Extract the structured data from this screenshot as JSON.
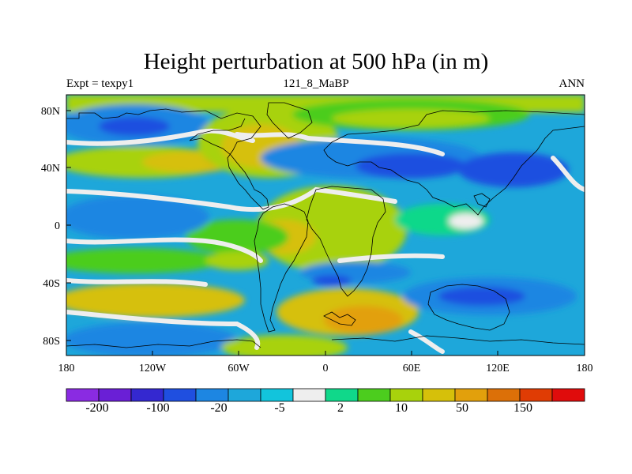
{
  "title": "Height perturbation at 500 hPa (in m)",
  "subtitle_left": "Expt = texpy1",
  "subtitle_center": "121_8_MaBP",
  "subtitle_right": "ANN",
  "map": {
    "projection": "cylindrical-equidistant",
    "lon_range": [
      -180,
      180
    ],
    "lat_range": [
      -90,
      90
    ],
    "x_tick_labels": [
      "180",
      "120W",
      "60W",
      "0",
      "60E",
      "120E",
      "180"
    ],
    "y_tick_labels": [
      "80N",
      "40N",
      "0",
      "40S",
      "80S"
    ]
  },
  "colorbar": {
    "colors": [
      "#8a2be2",
      "#6a1fd6",
      "#3428d0",
      "#1f4fe0",
      "#1d86e2",
      "#1ea7da",
      "#12c4dc",
      "#eeeeee",
      "#10d88a",
      "#4ccd1e",
      "#a8d20c",
      "#d6c00a",
      "#e2a00c",
      "#dc7008",
      "#e03c04",
      "#e00c0c"
    ],
    "labels": [
      "-200",
      "-100",
      "-20",
      "-5",
      "2",
      "10",
      "50",
      "150"
    ]
  }
}
